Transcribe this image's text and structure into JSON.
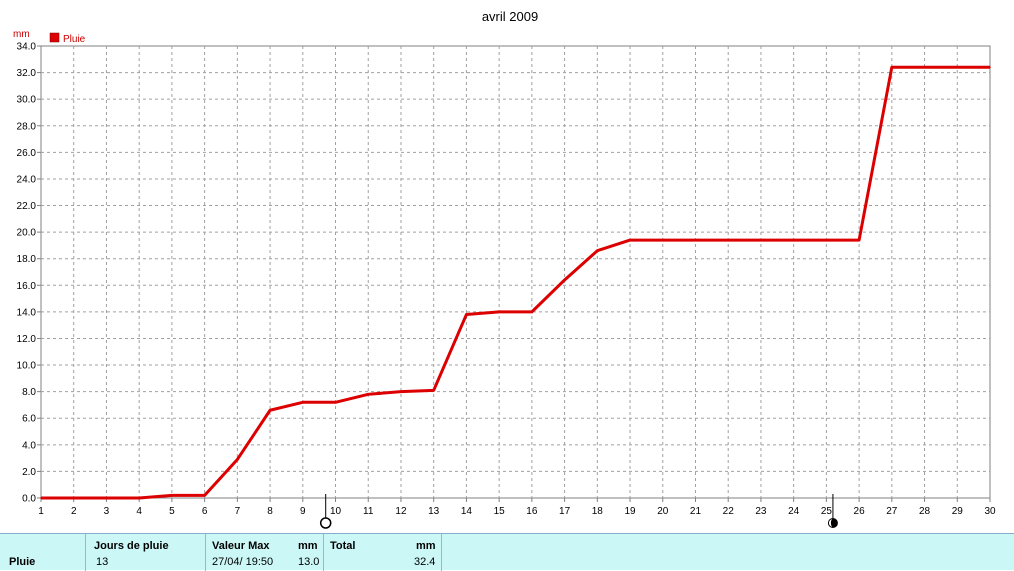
{
  "chart_data": {
    "type": "line",
    "title": "avril 2009",
    "ylabel": "mm",
    "legend": [
      {
        "name": "Pluie",
        "color": "#dd0000"
      }
    ],
    "legend_position": "top-left",
    "grid": true,
    "ylim": [
      0,
      34
    ],
    "yticks": [
      "0.0",
      "2.0",
      "4.0",
      "6.0",
      "8.0",
      "10.0",
      "12.0",
      "14.0",
      "16.0",
      "18.0",
      "20.0",
      "22.0",
      "24.0",
      "26.0",
      "28.0",
      "30.0",
      "32.0",
      "34.0"
    ],
    "xlim": [
      1,
      30
    ],
    "xticks": [
      "1",
      "2",
      "3",
      "4",
      "5",
      "6",
      "7",
      "8",
      "9",
      "10",
      "11",
      "12",
      "13",
      "14",
      "15",
      "16",
      "17",
      "18",
      "19",
      "20",
      "21",
      "22",
      "23",
      "24",
      "25",
      "26",
      "27",
      "28",
      "29",
      "30"
    ],
    "moon_phases": [
      {
        "day": 9.7,
        "phase": "full-moon"
      },
      {
        "day": 25.2,
        "phase": "new-moon"
      }
    ],
    "series": [
      {
        "name": "Pluie",
        "color": "#dd0000",
        "points": [
          [
            1,
            0.0
          ],
          [
            4,
            0.0
          ],
          [
            5,
            0.2
          ],
          [
            6,
            0.2
          ],
          [
            7,
            2.9
          ],
          [
            8,
            6.6
          ],
          [
            9,
            7.2
          ],
          [
            10,
            7.2
          ],
          [
            11,
            7.8
          ],
          [
            12,
            8.0
          ],
          [
            13,
            8.1
          ],
          [
            14,
            13.8
          ],
          [
            15,
            14.0
          ],
          [
            16,
            14.0
          ],
          [
            17,
            16.4
          ],
          [
            18,
            18.6
          ],
          [
            19,
            19.4
          ],
          [
            26,
            19.4
          ],
          [
            27,
            32.4
          ],
          [
            30,
            32.4
          ]
        ]
      }
    ]
  },
  "summary": {
    "row_label": "Pluie",
    "jours_header": "Jours de pluie",
    "jours_value": "13",
    "valeur_max_header": "Valeur Max",
    "valeur_max_unit": "mm",
    "valeur_max_date": "27/04/  19:50",
    "valeur_max_value": "13.0",
    "total_header": "Total",
    "total_unit": "mm",
    "total_value": "32.4"
  }
}
